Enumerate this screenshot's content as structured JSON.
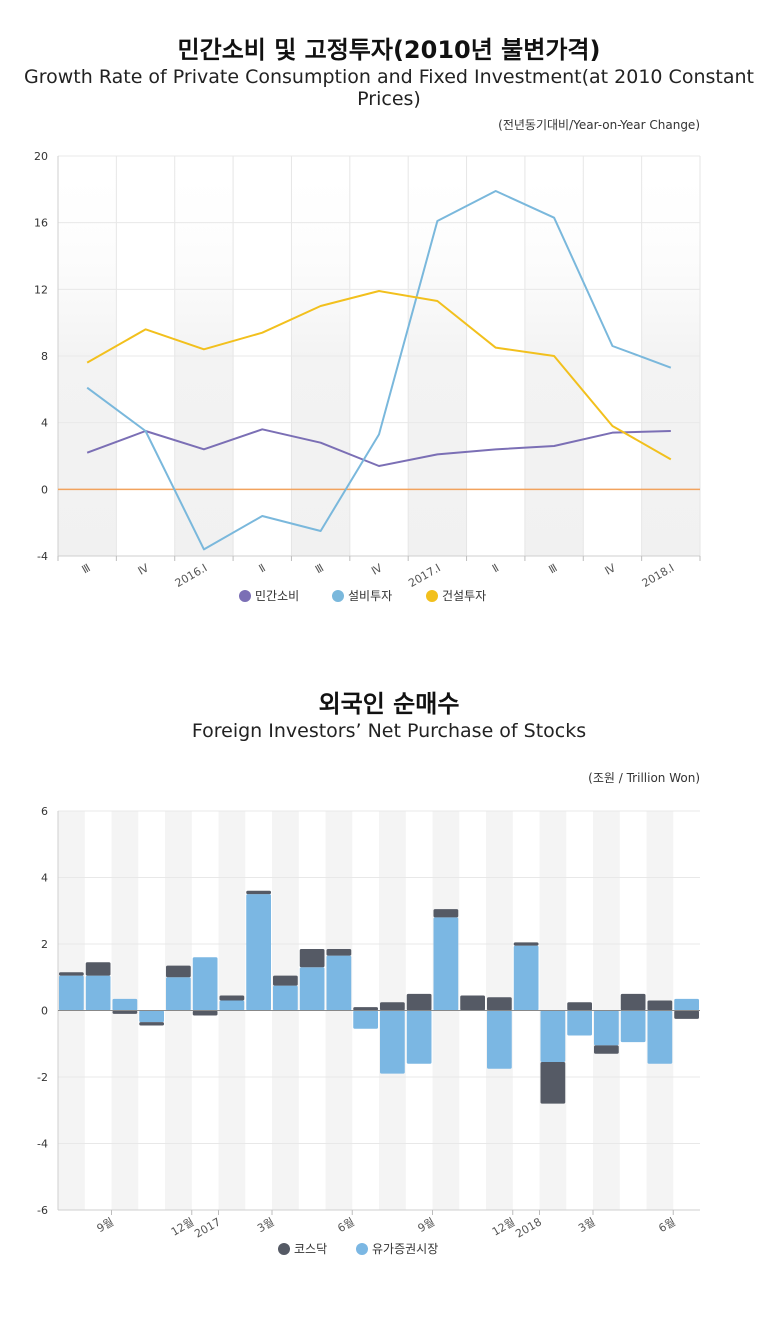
{
  "chart1": {
    "title_ko": "민간소비 및 고정투자(2010년 불변가격)",
    "title_en": "Growth Rate of Private Consumption and Fixed Investment(at 2010 Constant Prices)",
    "unit": "(전년동기대비/Year-on-Year Change)"
  },
  "chart2": {
    "title_ko": "외국인 순매수",
    "title_en": "Foreign Investors’ Net Purchase of Stocks",
    "unit": "(조원 / Trillion Won)"
  },
  "colors": {
    "consumption": "#7b6fb5",
    "equipment": "#7ab8dc",
    "construction": "#f2c01d",
    "kosdaq": "#555a65",
    "kospi": "#7bb7e3",
    "zero_line": "#f2a35e"
  },
  "chart_data": [
    {
      "type": "line",
      "title": "Growth Rate of Private Consumption and Fixed Investment(at 2010 Constant Prices)",
      "ylabel": "(전년동기대비/Year-on-Year Change)",
      "ylim": [
        -4,
        20
      ],
      "yticks": [
        -4,
        0,
        4,
        8,
        12,
        16,
        20
      ],
      "categories": [
        "Ⅲ",
        "Ⅳ",
        "2016.Ⅰ",
        "Ⅱ",
        "Ⅲ",
        "Ⅳ",
        "2017.Ⅰ",
        "Ⅱ",
        "Ⅲ",
        "Ⅳ",
        "2018.Ⅰ"
      ],
      "series": [
        {
          "name": "민간소비",
          "key": "consumption",
          "values": [
            2.2,
            3.5,
            2.4,
            3.6,
            2.8,
            1.4,
            2.1,
            2.4,
            2.6,
            3.4,
            3.5
          ]
        },
        {
          "name": "설비투자",
          "key": "equipment",
          "values": [
            6.1,
            3.5,
            -3.6,
            -1.6,
            -2.5,
            3.3,
            16.1,
            17.9,
            16.3,
            8.6,
            7.3
          ]
        },
        {
          "name": "건설투자",
          "key": "construction",
          "values": [
            7.6,
            9.6,
            8.4,
            9.4,
            11.0,
            11.9,
            11.3,
            8.5,
            8.0,
            3.8,
            1.8
          ]
        }
      ],
      "legend": "bottom"
    },
    {
      "type": "bar",
      "stacked": true,
      "title": "Foreign Investors’ Net Purchase of Stocks",
      "ylabel": "(조원 / Trillion Won)",
      "ylim": [
        -6,
        6
      ],
      "yticks": [
        -6,
        -4,
        -2,
        0,
        2,
        4,
        6
      ],
      "xtick_labels": [
        {
          "label": "9월",
          "index": 1
        },
        {
          "label": "12월",
          "index": 4
        },
        {
          "label": "2017",
          "index": 5
        },
        {
          "label": "3월",
          "index": 7
        },
        {
          "label": "6월",
          "index": 10
        },
        {
          "label": "9월",
          "index": 13
        },
        {
          "label": "12월",
          "index": 16
        },
        {
          "label": "2018",
          "index": 17
        },
        {
          "label": "3월",
          "index": 19
        },
        {
          "label": "6월",
          "index": 22
        }
      ],
      "series": [
        {
          "name": "유가증권시장",
          "key": "kospi",
          "values": [
            1.05,
            1.05,
            0.35,
            -0.35,
            1.0,
            1.6,
            0.3,
            3.5,
            0.75,
            1.3,
            1.65,
            -0.55,
            -1.9,
            -1.6,
            2.8,
            0.0,
            -1.75,
            1.95,
            -1.55,
            -0.75,
            -1.05,
            -0.95,
            -1.6,
            0.35
          ]
        },
        {
          "name": "코스닥",
          "key": "kosdaq",
          "values": [
            0.1,
            0.4,
            -0.1,
            -0.1,
            0.35,
            -0.15,
            0.15,
            0.1,
            0.3,
            0.55,
            0.2,
            0.1,
            0.25,
            0.5,
            0.25,
            0.45,
            0.4,
            0.1,
            -1.25,
            0.25,
            -0.25,
            0.5,
            0.3,
            -0.25
          ]
        }
      ],
      "legend": "bottom"
    }
  ]
}
